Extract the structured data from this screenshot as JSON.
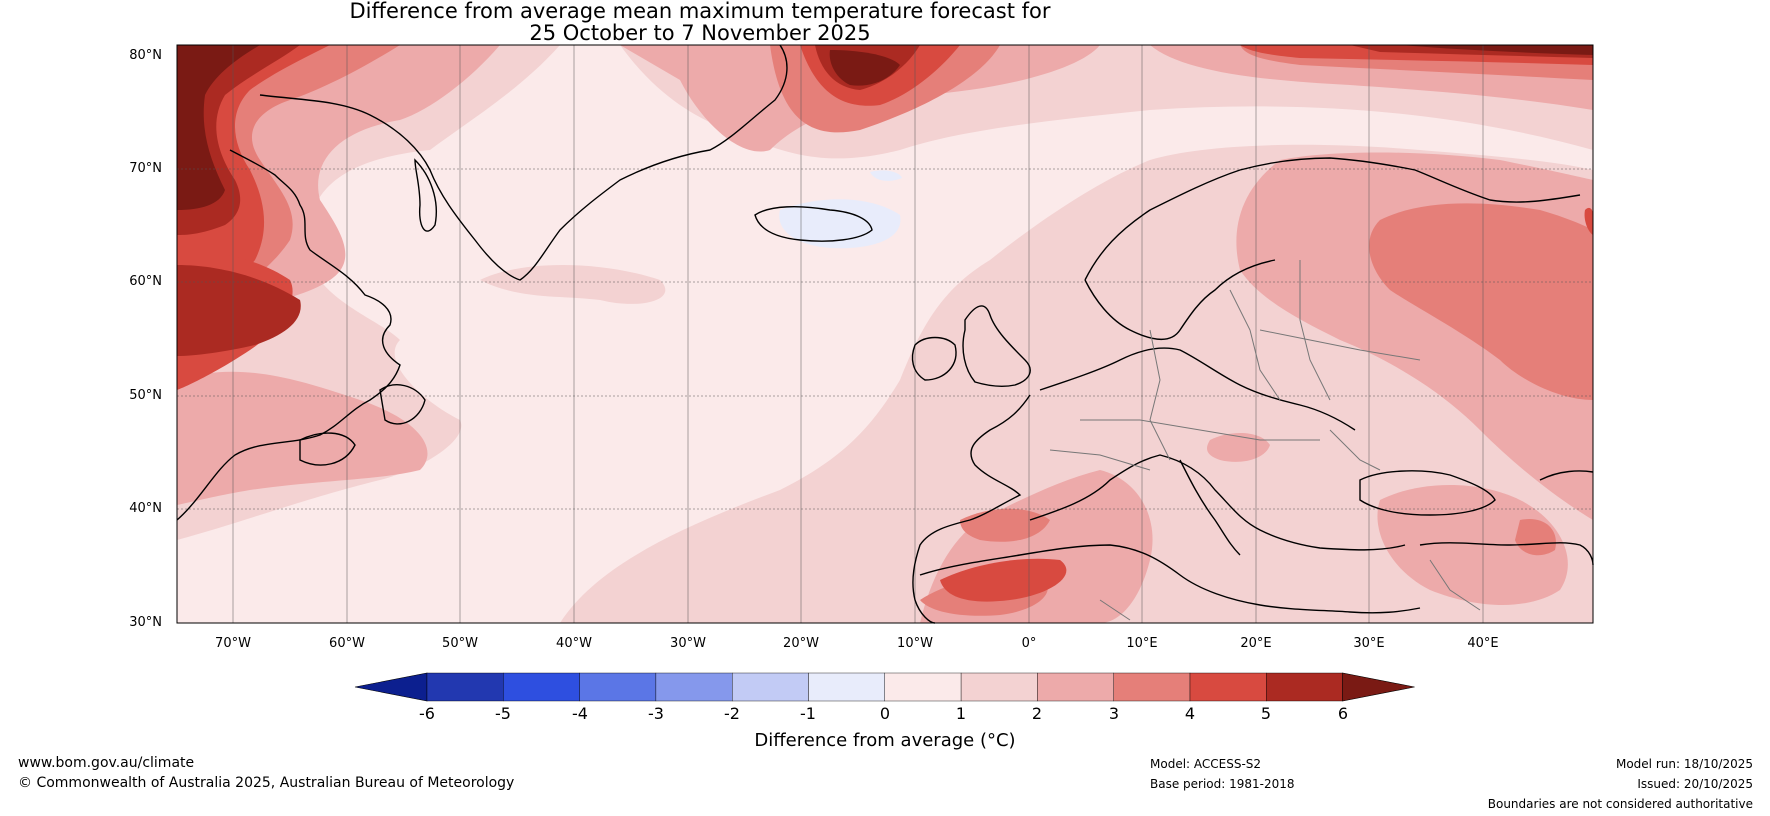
{
  "title": {
    "line1": "Difference from average mean maximum temperature forecast for",
    "line2": "25 October to 7 November 2025"
  },
  "map": {
    "lat_labels": [
      "80°N",
      "70°N",
      "60°N",
      "50°N",
      "40°N",
      "30°N"
    ],
    "lon_labels": [
      "70°W",
      "60°W",
      "50°W",
      "40°W",
      "30°W",
      "20°W",
      "10°W",
      "0°",
      "10°E",
      "20°E",
      "30°E",
      "40°E"
    ]
  },
  "colorbar": {
    "ticks": [
      "-6",
      "-5",
      "-4",
      "-3",
      "-2",
      "-1",
      "0",
      "1",
      "2",
      "3",
      "4",
      "5",
      "6"
    ],
    "colors": [
      "#0c1f8f",
      "#2238b0",
      "#2e4fe0",
      "#5b76e6",
      "#8598ec",
      "#c2cbf5",
      "#e8ecfb",
      "#fbeaea",
      "#f3d2d2",
      "#edaaaa",
      "#e57f79",
      "#d84a40",
      "#ab2a22",
      "#7a1a14"
    ],
    "label": "Difference from average (°C)"
  },
  "footer": {
    "website": "www.bom.gov.au/climate",
    "copyright": "© Commonwealth of Australia 2025, Australian Bureau of Meteorology",
    "model": "Model: ACCESS-S2",
    "base_period": "Base period: 1981-2018",
    "model_run": "Model run: 18/10/2025",
    "issued": "Issued: 20/10/2025",
    "disclaimer": "Boundaries are not considered authoritative"
  }
}
